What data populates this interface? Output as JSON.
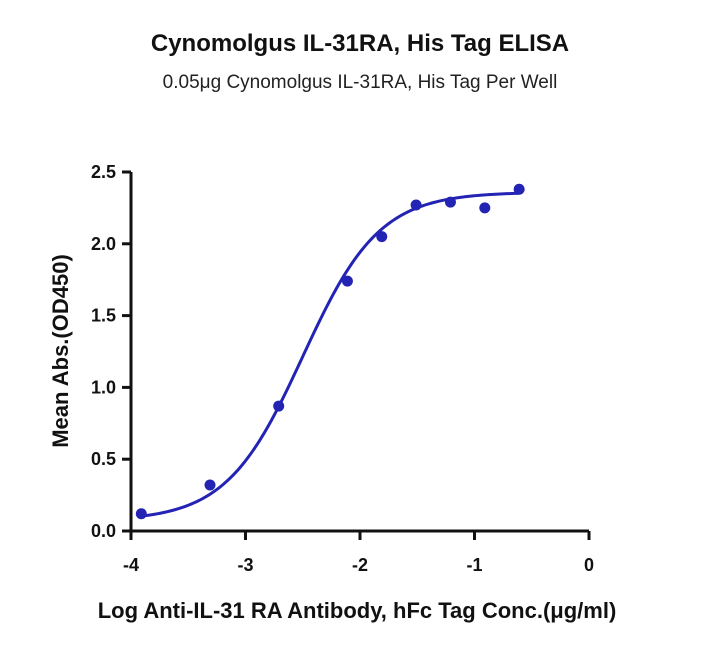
{
  "chart_data": {
    "type": "scatter",
    "title": "Cynomolgus IL-31RA, His Tag ELISA",
    "subtitle": "0.05μg Cynomolgus IL-31RA, His Tag Per Well",
    "xlabel": "Log Anti-IL-31 RA Antibody, hFc Tag Conc.(μg/ml)",
    "ylabel": "Mean Abs.(OD450)",
    "xlim": [
      -4,
      0
    ],
    "ylim": [
      0,
      2.5
    ],
    "xticks": [
      -4,
      -3,
      -2,
      -1,
      0
    ],
    "xtick_labels": [
      "-4",
      "-3",
      "-2",
      "-1",
      "0"
    ],
    "yticks": [
      0,
      0.5,
      1.0,
      1.5,
      2.0,
      2.5
    ],
    "ytick_labels": [
      "0.0",
      "0.5",
      "1.0",
      "1.5",
      "2.0",
      "2.5"
    ],
    "grid": false,
    "color": "#2323b4",
    "points": [
      {
        "x": -3.91,
        "y": 0.12
      },
      {
        "x": -3.31,
        "y": 0.32
      },
      {
        "x": -2.71,
        "y": 0.87
      },
      {
        "x": -2.11,
        "y": 1.74
      },
      {
        "x": -1.81,
        "y": 2.05
      },
      {
        "x": -1.51,
        "y": 2.27
      },
      {
        "x": -1.21,
        "y": 2.29
      },
      {
        "x": -0.91,
        "y": 2.25
      },
      {
        "x": -0.61,
        "y": 2.38
      }
    ],
    "fit_curve": {
      "model": "4PL",
      "bottom": 0.07,
      "top": 2.36,
      "log_ec50": -2.5,
      "hill_slope": 1.3,
      "x_range": [
        -3.91,
        -0.61
      ]
    }
  }
}
